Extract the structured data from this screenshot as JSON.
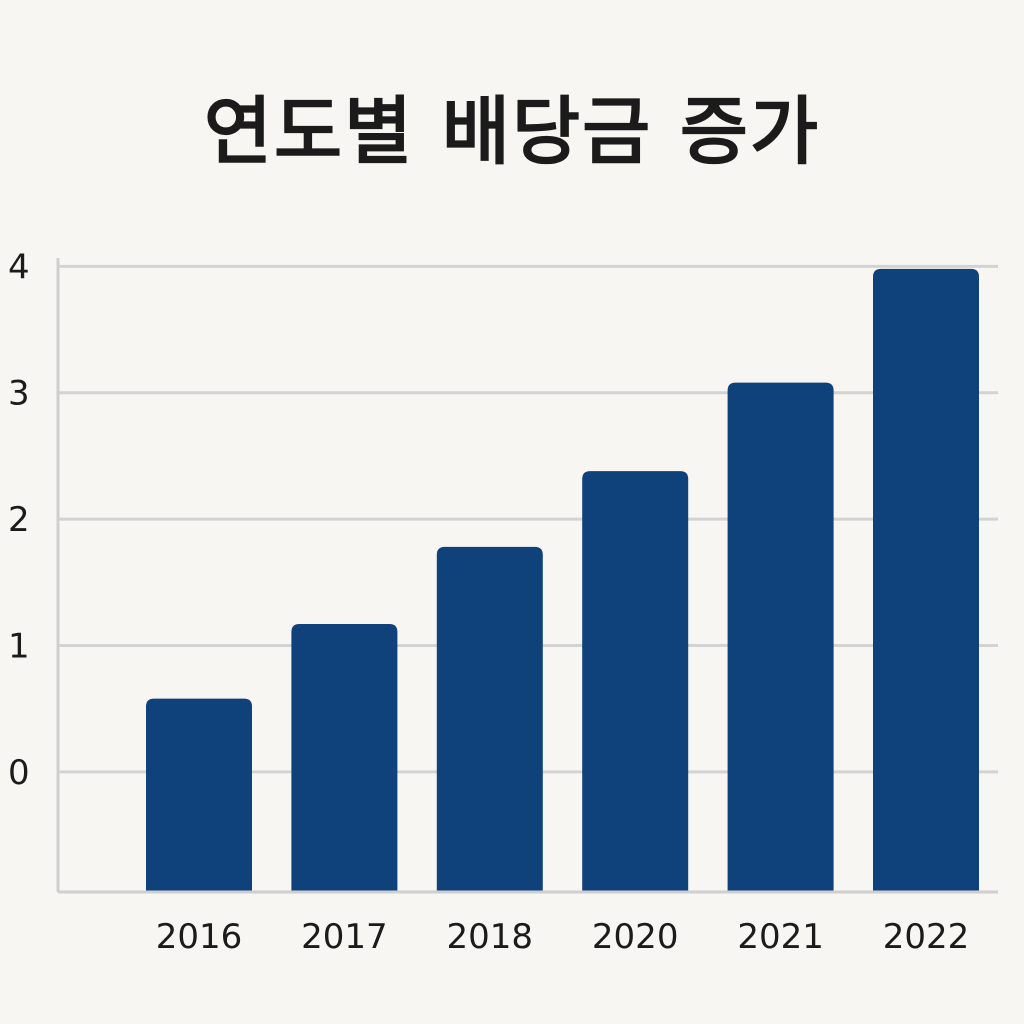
{
  "chart_data": {
    "type": "bar",
    "title": "연도별 배당금 증가",
    "xlabel": "",
    "ylabel": "",
    "categories": [
      "2016",
      "2017",
      "2018",
      "2020",
      "2021",
      "2022"
    ],
    "values": [
      0.58,
      1.17,
      1.78,
      2.38,
      3.08,
      3.98
    ],
    "yticks": [
      "0",
      "1",
      "2",
      "3",
      "4"
    ],
    "ylim": [
      -0.95,
      4.05
    ],
    "grid": true,
    "colors": {
      "bar": "#0f417b",
      "grid": "#d3d3d3",
      "axis": "#cfcfcf"
    }
  }
}
